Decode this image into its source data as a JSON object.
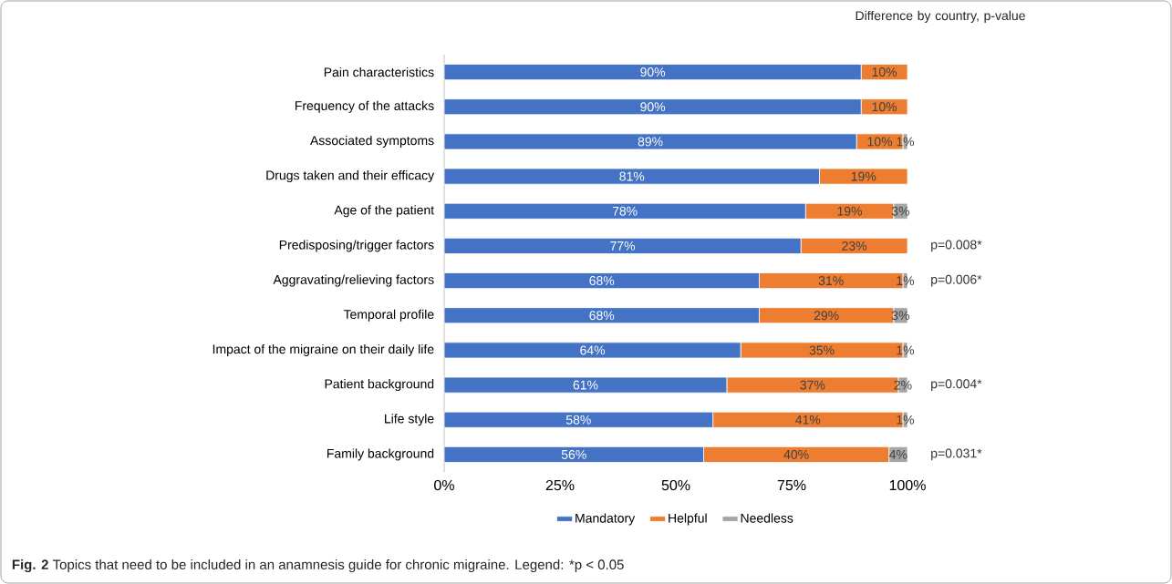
{
  "chart_data": {
    "type": "bar",
    "orientation": "horizontal",
    "stacked": true,
    "categories": [
      "Pain characteristics",
      "Frequency of the attacks",
      "Associated symptoms",
      "Drugs taken and their efficacy",
      "Age of the patient",
      "Predisposing/trigger factors",
      "Aggravating/relieving factors",
      "Temporal profile",
      "Impact of the migraine on their daily life",
      "Patient background",
      "Life style",
      "Family background"
    ],
    "series": [
      {
        "name": "Mandatory",
        "color": "#4472c4",
        "values": [
          90,
          90,
          89,
          81,
          78,
          77,
          68,
          68,
          64,
          61,
          58,
          56
        ],
        "value_labels": [
          "90%",
          "90%",
          "89%",
          "81%",
          "78%",
          "77%",
          "68%",
          "68%",
          "64%",
          "61%",
          "58%",
          "56%"
        ]
      },
      {
        "name": "Helpful",
        "color": "#ed7d31",
        "values": [
          10,
          10,
          10,
          19,
          19,
          23,
          31,
          29,
          35,
          37,
          41,
          40
        ],
        "value_labels": [
          "10%",
          "10%",
          "10%",
          "19%",
          "19%",
          "23%",
          "31%",
          "29%",
          "35%",
          "37%",
          "41%",
          "40%"
        ]
      },
      {
        "name": "Needless",
        "color": "#a5a5a5",
        "values": [
          0,
          0,
          1,
          0,
          3,
          0,
          1,
          3,
          1,
          2,
          1,
          4
        ],
        "value_labels": [
          null,
          null,
          "1%",
          null,
          "3%",
          null,
          "1%",
          "3%",
          "1%",
          "2%",
          "1%",
          "4%"
        ]
      }
    ],
    "xlim": [
      0,
      100
    ],
    "xticks": [
      {
        "value": 0,
        "label": "0%"
      },
      {
        "value": 25,
        "label": "25%"
      },
      {
        "value": 50,
        "label": "50%"
      },
      {
        "value": 75,
        "label": "75%"
      },
      {
        "value": 100,
        "label": "100%"
      }
    ],
    "legend": "bottom",
    "annotations": [
      "Difference by country, p-value",
      "p=0.008*",
      "p=0.006*",
      "p=0.004*",
      "p=0.031*",
      "**Fig. 2** Topics that need to be included in an anamnesis guide for chronic migraine. Legend: *p < 0.05"
    ]
  }
}
